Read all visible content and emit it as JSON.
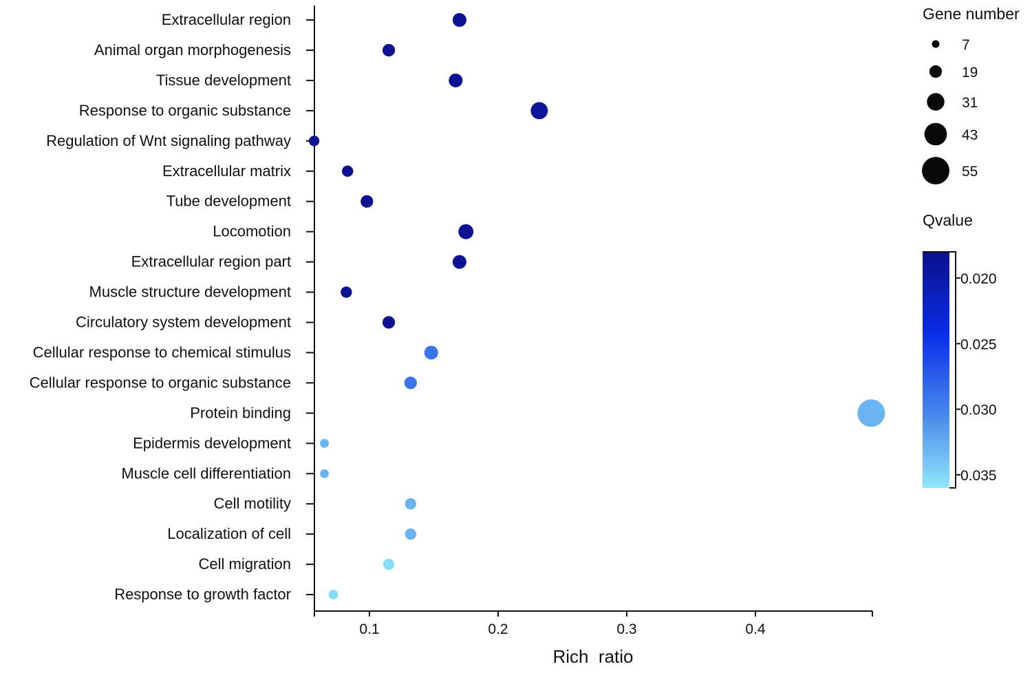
{
  "chart_data": {
    "type": "scatter",
    "title": "",
    "xlabel": "Rich  ratio",
    "ylabel": "",
    "xlim": [
      0.057,
      0.49
    ],
    "xticks": [
      {
        "value": 0.1,
        "label": "0.1"
      },
      {
        "value": 0.2,
        "label": "0.2"
      },
      {
        "value": 0.3,
        "label": "0.3"
      },
      {
        "value": 0.4,
        "label": "0.4"
      }
    ],
    "categories": [
      "Extracellular region",
      "Animal organ morphogenesis",
      "Tissue development",
      "Response to organic substance",
      "Regulation of Wnt signaling pathway",
      "Extracellular matrix",
      "Tube development",
      "Locomotion",
      "Extracellular region part",
      "Muscle structure development",
      "Circulatory system development",
      "Cellular response to chemical stimulus",
      "Cellular response to organic substance",
      "Protein binding",
      "Epidermis development",
      "Muscle cell differentiation",
      "Cell motility",
      "Localization of cell",
      "Cell migration",
      "Response to growth factor"
    ],
    "points": [
      {
        "term": "Extracellular region",
        "rich_ratio": 0.17,
        "gene_number": 22,
        "qvalue": 0.0185
      },
      {
        "term": "Animal organ morphogenesis",
        "rich_ratio": 0.115,
        "gene_number": 19,
        "qvalue": 0.0185
      },
      {
        "term": "Tissue development",
        "rich_ratio": 0.167,
        "gene_number": 22,
        "qvalue": 0.0185
      },
      {
        "term": "Response to organic substance",
        "rich_ratio": 0.232,
        "gene_number": 30,
        "qvalue": 0.0188
      },
      {
        "term": "Regulation of Wnt signaling pathway",
        "rich_ratio": 0.057,
        "gene_number": 14,
        "qvalue": 0.0185
      },
      {
        "term": "Extracellular matrix",
        "rich_ratio": 0.083,
        "gene_number": 16,
        "qvalue": 0.0185
      },
      {
        "term": "Tube development",
        "rich_ratio": 0.098,
        "gene_number": 19,
        "qvalue": 0.0185
      },
      {
        "term": "Locomotion",
        "rich_ratio": 0.175,
        "gene_number": 25,
        "qvalue": 0.0185
      },
      {
        "term": "Extracellular region part",
        "rich_ratio": 0.17,
        "gene_number": 22,
        "qvalue": 0.0185
      },
      {
        "term": "Muscle structure development",
        "rich_ratio": 0.082,
        "gene_number": 16,
        "qvalue": 0.0185
      },
      {
        "term": "Circulatory system development",
        "rich_ratio": 0.115,
        "gene_number": 19,
        "qvalue": 0.0185
      },
      {
        "term": "Cellular response to chemical stimulus",
        "rich_ratio": 0.148,
        "gene_number": 22,
        "qvalue": 0.029
      },
      {
        "term": "Cellular response to organic substance",
        "rich_ratio": 0.132,
        "gene_number": 19,
        "qvalue": 0.029
      },
      {
        "term": "Protein binding",
        "rich_ratio": 0.49,
        "gene_number": 55,
        "qvalue": 0.033
      },
      {
        "term": "Epidermis development",
        "rich_ratio": 0.065,
        "gene_number": 10,
        "qvalue": 0.033
      },
      {
        "term": "Muscle cell differentiation",
        "rich_ratio": 0.065,
        "gene_number": 10,
        "qvalue": 0.033
      },
      {
        "term": "Cell motility",
        "rich_ratio": 0.132,
        "gene_number": 16,
        "qvalue": 0.033
      },
      {
        "term": "Localization of cell",
        "rich_ratio": 0.132,
        "gene_number": 16,
        "qvalue": 0.033
      },
      {
        "term": "Cell migration",
        "rich_ratio": 0.115,
        "gene_number": 16,
        "qvalue": 0.0355
      },
      {
        "term": "Response to growth factor",
        "rich_ratio": 0.072,
        "gene_number": 12,
        "qvalue": 0.0355
      }
    ],
    "size_legend": {
      "title": "Gene number",
      "entries": [
        {
          "value": 7,
          "label": "7"
        },
        {
          "value": 19,
          "label": "19"
        },
        {
          "value": 31,
          "label": "31"
        },
        {
          "value": 43,
          "label": "43"
        },
        {
          "value": 55,
          "label": "55"
        }
      ]
    },
    "color_legend": {
      "title": "Qvalue",
      "range": [
        0.018,
        0.036
      ],
      "ticks": [
        {
          "value": 0.02,
          "label": "0.020"
        },
        {
          "value": 0.025,
          "label": "0.025"
        },
        {
          "value": 0.03,
          "label": "0.030"
        },
        {
          "value": 0.035,
          "label": "0.035"
        }
      ],
      "colors": [
        "#0c118c",
        "#0a2de8",
        "#4a8cec",
        "#8fe6f8"
      ],
      "color_stops": [
        0.0,
        0.35,
        0.7,
        1.0
      ]
    },
    "point_color_low_q": "#0c1199",
    "point_color_high_q": "#8fe6f8",
    "axis_color": "#111111"
  }
}
